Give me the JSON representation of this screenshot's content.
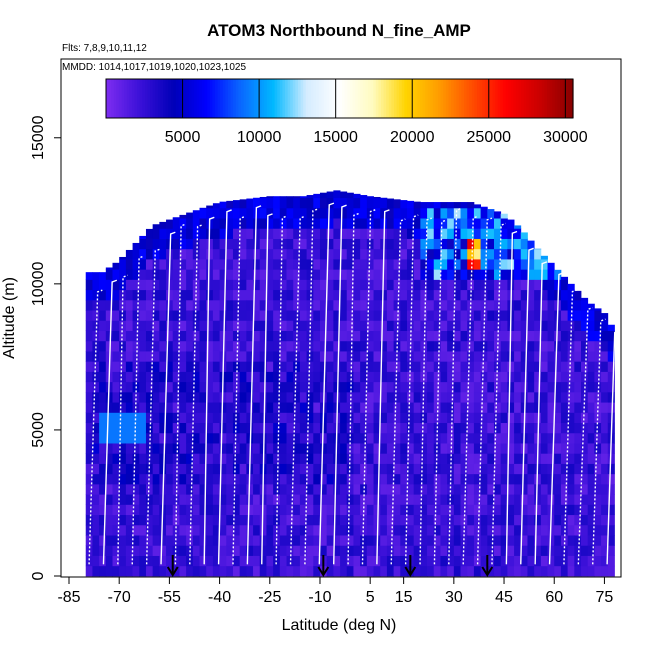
{
  "chart_data": {
    "type": "heatmap",
    "title": "ATOM3 Northbound N_fine_AMP",
    "subtitle_flights": "Flts: 7,8,9,10,11,12",
    "subtitle_dates": "MMDD: 1014,1017,1019,1020,1023,1025",
    "xlabel": "Latitude (deg N)",
    "ylabel": "Altitude (m)",
    "xlim": [
      -85,
      80
    ],
    "ylim": [
      0,
      17500
    ],
    "x_ticks": [
      -85,
      -70,
      -55,
      -40,
      -25,
      -10,
      5,
      15,
      30,
      45,
      60,
      75
    ],
    "y_ticks": [
      0,
      5000,
      10000,
      15000
    ],
    "colorbar": {
      "min": 0,
      "max": 30500,
      "ticks": [
        5000,
        10000,
        15000,
        20000,
        25000,
        30000
      ],
      "colors": [
        "#7b2cf0",
        "#3a10d8",
        "#0000b8",
        "#0000ff",
        "#0a66ff",
        "#00b8ff",
        "#d4ecff",
        "#ffffff",
        "#fffbc0",
        "#ffd400",
        "#ff9c00",
        "#ff4d00",
        "#ff0000",
        "#cc0000",
        "#8a0000"
      ]
    },
    "arrow_latitudes": [
      -54,
      -9,
      17,
      40
    ],
    "envelope_top_km": [
      [
        -80,
        10.4
      ],
      [
        -75,
        10.4
      ],
      [
        -70,
        10.8
      ],
      [
        -65,
        11.4
      ],
      [
        -60,
        12.0
      ],
      [
        -50,
        12.4
      ],
      [
        -40,
        12.8
      ],
      [
        -25,
        13.0
      ],
      [
        -15,
        13.0
      ],
      [
        -5,
        13.2
      ],
      [
        5,
        13.0
      ],
      [
        20,
        12.8
      ],
      [
        35,
        12.8
      ],
      [
        45,
        12.4
      ],
      [
        50,
        11.9
      ],
      [
        55,
        11.2
      ],
      [
        60,
        10.6
      ],
      [
        65,
        10.0
      ],
      [
        70,
        9.4
      ],
      [
        75,
        9.0
      ],
      [
        78,
        8.4
      ]
    ],
    "high_value_features": [
      {
        "lat": [
          -76,
          -63
        ],
        "alt_km": [
          4.5,
          5.5
        ],
        "level": "low"
      },
      {
        "lat": [
          20,
          60
        ],
        "alt_km": [
          10.0,
          12.5
        ],
        "level": "mid"
      },
      {
        "lat": [
          33,
          37
        ],
        "alt_km": [
          10.3,
          11.5
        ],
        "level": "max"
      }
    ]
  }
}
